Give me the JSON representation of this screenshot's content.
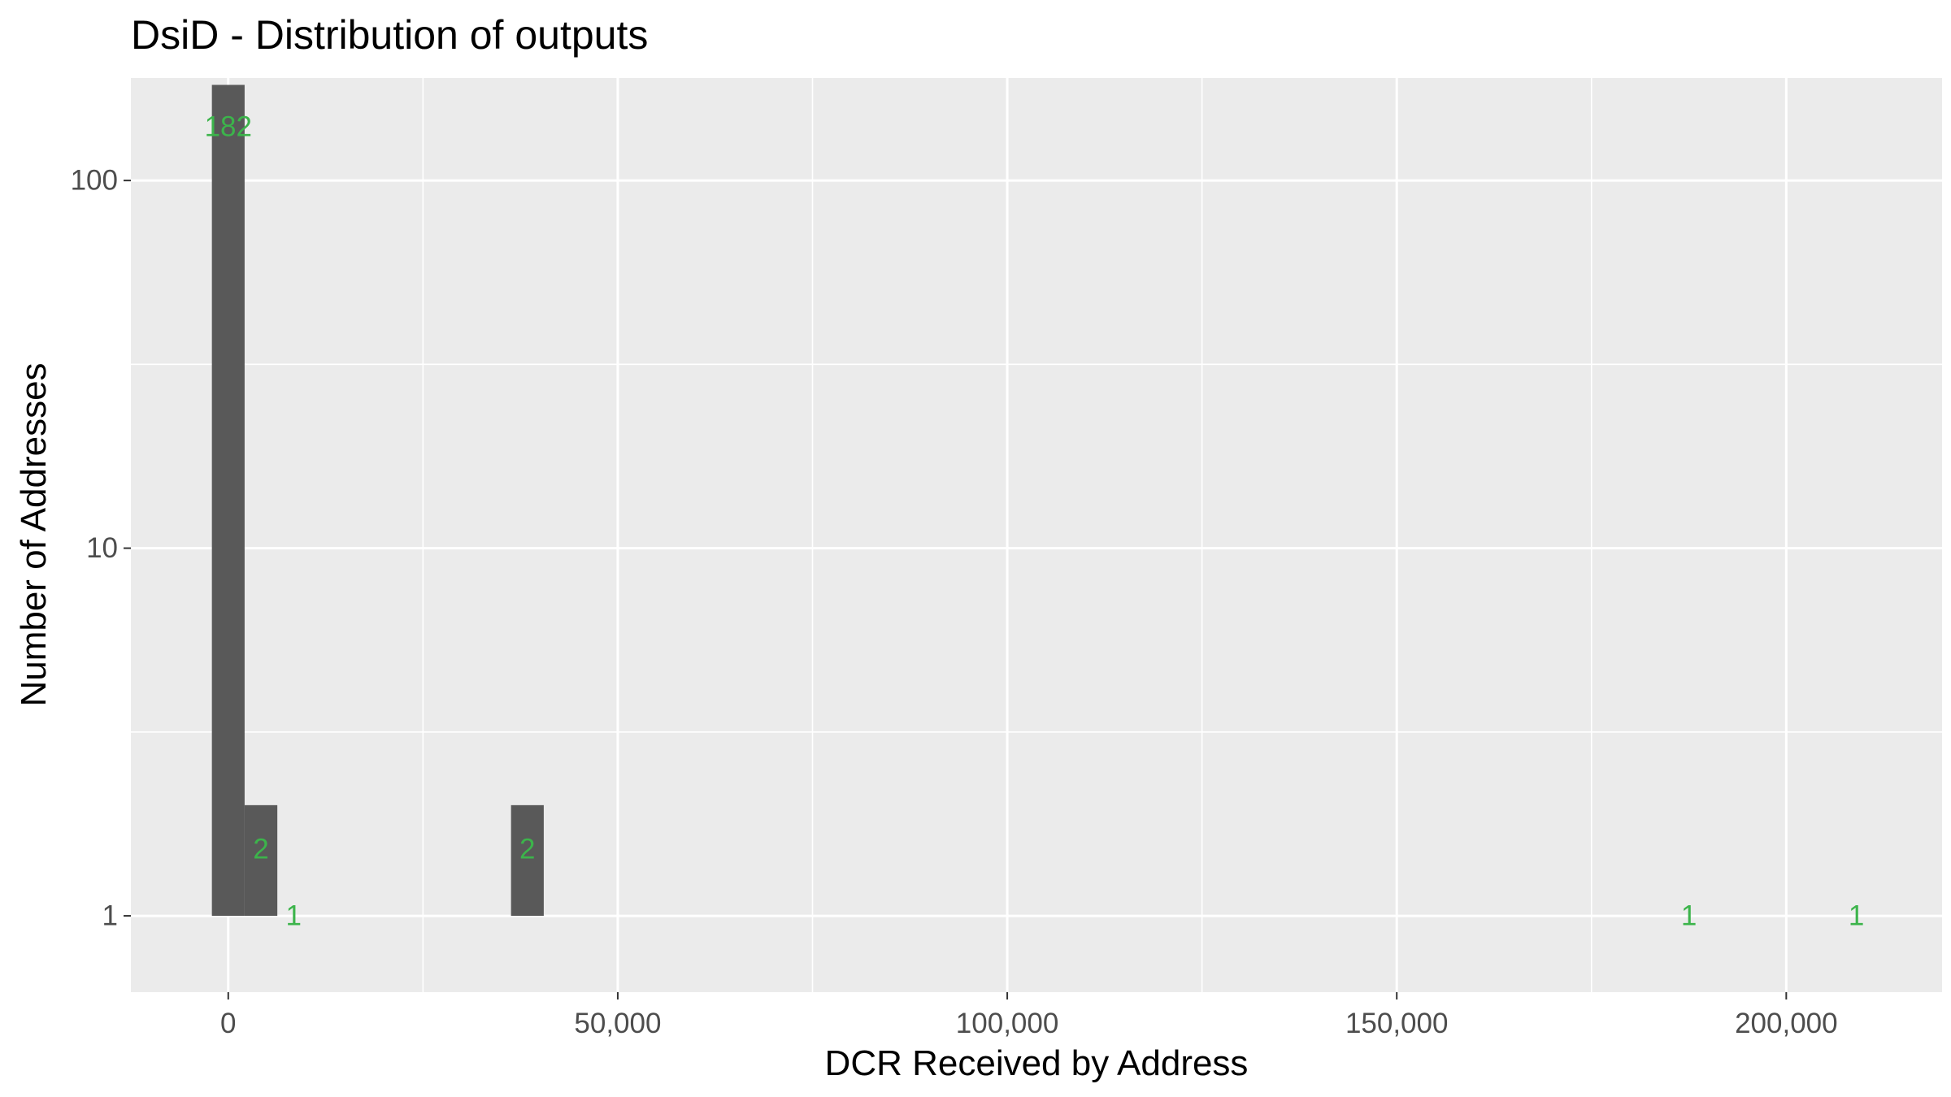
{
  "chart_data": {
    "type": "bar",
    "title": "DsiD - Distribution of outputs",
    "xlabel": "DCR Received by Address",
    "ylabel": "Number of Addresses",
    "y_scale": "log10",
    "xlim": [
      -12500,
      220000
    ],
    "ylim": [
      0.62,
      190
    ],
    "x_ticks": [
      0,
      50000,
      100000,
      150000,
      200000
    ],
    "x_tick_labels": [
      "0",
      "50,000",
      "100,000",
      "150,000",
      "200,000"
    ],
    "y_ticks": [
      1,
      10,
      100
    ],
    "y_tick_labels": [
      "1",
      "10",
      "100"
    ],
    "bars": [
      {
        "x_start": -2100,
        "x_end": 2100,
        "count": 182
      },
      {
        "x_start": 2100,
        "x_end": 6300,
        "count": 2
      },
      {
        "x_start": 36300,
        "x_end": 40500,
        "count": 2
      }
    ],
    "annotations": [
      {
        "x": 0,
        "y": 140,
        "label": "182"
      },
      {
        "x": 4200,
        "y": 1.52,
        "label": "2"
      },
      {
        "x": 38400,
        "y": 1.52,
        "label": "2"
      },
      {
        "x": 8400,
        "y": 1,
        "label": "1"
      },
      {
        "x": 187500,
        "y": 1,
        "label": "1"
      },
      {
        "x": 209000,
        "y": 1,
        "label": "1"
      }
    ],
    "grid": true,
    "colors": {
      "panel_background": "#ebebeb",
      "grid_major": "#ffffff",
      "bar_fill": "#595959",
      "label_color": "#3cb44b"
    }
  }
}
